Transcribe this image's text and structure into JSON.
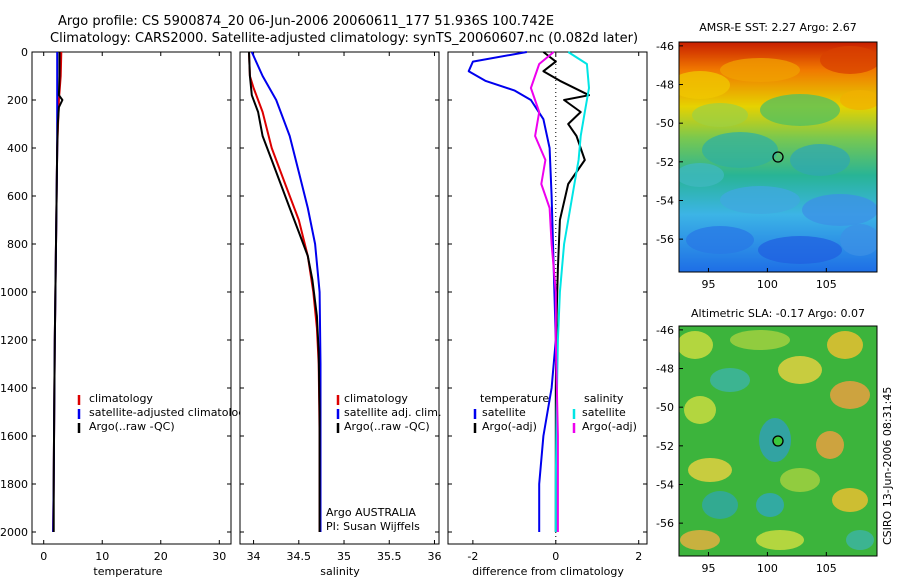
{
  "header": {
    "line1": "Argo profile: CS 5900874_20 06-Jun-2006 20060611_177 51.936S 100.742E",
    "line2": "Climatology: CARS2000. Satellite-adjusted climatology: synTS_20060607.nc (0.082d later)"
  },
  "panels": {
    "temperature": {
      "xlabel": "temperature",
      "xticks": [
        "0",
        "10",
        "20",
        "30"
      ],
      "legend": [
        "climatology",
        "satellite-adjusted climatology",
        "Argo(..raw -QC)"
      ]
    },
    "salinity": {
      "xlabel": "salinity",
      "xticks": [
        "34",
        "34.5",
        "35",
        "35.5",
        "36"
      ],
      "legend": [
        "climatology",
        "satellite adj. clim.",
        "Argo(..raw -QC)"
      ],
      "credit1": "Argo AUSTRALIA",
      "credit2": "PI: Susan Wijffels"
    },
    "difference": {
      "xlabel": "difference from climatology",
      "xticks": [
        "-2",
        "0",
        "2"
      ],
      "legend_temp_head": "temperature",
      "legend_sal_head": "salinity",
      "legend_temp": [
        "satellite",
        "Argo(-adj)"
      ],
      "legend_sal": [
        "satellite",
        "Argo(-adj)"
      ]
    }
  },
  "yticks": [
    "0",
    "200",
    "400",
    "600",
    "800",
    "1000",
    "1200",
    "1400",
    "1600",
    "1800",
    "2000"
  ],
  "maps": {
    "sst": {
      "title": "AMSR-E SST: 2.27 Argo: 2.67",
      "yticks": [
        "-46",
        "-48",
        "-50",
        "-52",
        "-54",
        "-56"
      ],
      "xticks": [
        "95",
        "100",
        "105"
      ]
    },
    "sla": {
      "title": "Altimetric SLA: -0.17 Argo: 0.07",
      "yticks": [
        "-46",
        "-48",
        "-50",
        "-52",
        "-54",
        "-56"
      ],
      "xticks": [
        "95",
        "100",
        "105"
      ]
    }
  },
  "timestamp": "CSIRO 13-Jun-2006 08:31:45",
  "colors": {
    "climatology": "#dd0000",
    "satellite": "#0000ee",
    "argo": "#000000",
    "sal_satellite": "#00e5e5",
    "sal_argo": "#ee00ee"
  },
  "chart_data": [
    {
      "type": "line",
      "xlabel": "temperature",
      "ylabel": "",
      "xlim": [
        -2,
        32
      ],
      "ylim": [
        2050,
        0
      ],
      "series": [
        {
          "name": "climatology",
          "x": [
            3.0,
            2.9,
            2.6,
            2.3,
            2.2,
            2.1,
            2.0,
            1.9,
            1.8,
            1.7,
            1.6
          ],
          "y": [
            0,
            100,
            200,
            400,
            600,
            800,
            1000,
            1200,
            1500,
            1800,
            2000
          ]
        },
        {
          "name": "satellite-adjusted climatology",
          "x": [
            2.3,
            2.3,
            2.3,
            2.3,
            2.2,
            2.1,
            2.0,
            1.9,
            1.8,
            1.7,
            1.6
          ],
          "y": [
            0,
            100,
            200,
            400,
            600,
            800,
            1000,
            1200,
            1500,
            1800,
            2000
          ]
        },
        {
          "name": "Argo(..raw -QC)",
          "x": [
            2.7,
            2.7,
            2.6,
            3.2,
            2.6,
            2.4,
            2.3,
            2.2,
            2.1,
            2.0,
            1.9,
            1.8,
            1.7,
            1.7
          ],
          "y": [
            0,
            100,
            180,
            200,
            230,
            300,
            400,
            600,
            800,
            1000,
            1200,
            1500,
            1800,
            2000
          ]
        }
      ]
    },
    {
      "type": "line",
      "xlabel": "salinity",
      "xlim": [
        33.85,
        36.05
      ],
      "ylim": [
        2050,
        0
      ],
      "series": [
        {
          "name": "climatology",
          "x": [
            33.95,
            33.96,
            34.0,
            34.1,
            34.2,
            34.35,
            34.5,
            34.6,
            34.66,
            34.7,
            34.72,
            34.73,
            34.73
          ],
          "y": [
            0,
            100,
            150,
            250,
            400,
            550,
            700,
            850,
            1000,
            1150,
            1300,
            1600,
            2000
          ]
        },
        {
          "name": "satellite adj. clim.",
          "x": [
            33.98,
            34.1,
            34.25,
            34.4,
            34.5,
            34.6,
            34.68,
            34.73,
            34.74,
            34.74
          ],
          "y": [
            0,
            100,
            200,
            350,
            500,
            650,
            800,
            1000,
            1300,
            2000
          ]
        },
        {
          "name": "Argo(..raw -QC)",
          "x": [
            33.95,
            33.96,
            33.98,
            34.05,
            34.1,
            34.2,
            34.3,
            34.4,
            34.5,
            34.6,
            34.65,
            34.7,
            34.72,
            34.73,
            34.73
          ],
          "y": [
            0,
            100,
            180,
            250,
            350,
            450,
            550,
            650,
            750,
            850,
            950,
            1100,
            1250,
            1500,
            2000
          ]
        }
      ]
    },
    {
      "type": "line",
      "xlabel": "difference from climatology",
      "xlim": [
        -2.6,
        2.2
      ],
      "ylim": [
        2050,
        0
      ],
      "series": [
        {
          "name": "temperature satellite",
          "x": [
            -0.7,
            -2.0,
            -2.1,
            -1.7,
            -1.0,
            -0.6,
            -0.3,
            -0.15,
            -0.1,
            -0.05,
            0.0,
            -0.1,
            -0.3,
            -0.4,
            -0.4
          ],
          "y": [
            0,
            40,
            80,
            120,
            160,
            200,
            280,
            400,
            600,
            900,
            1200,
            1400,
            1600,
            1800,
            2000
          ]
        },
        {
          "name": "temperature Argo(-adj)",
          "x": [
            -0.3,
            0.0,
            -0.3,
            0.1,
            0.8,
            0.2,
            0.6,
            0.3,
            0.5,
            0.7,
            0.3,
            0.1,
            0.05,
            0.02,
            0.0,
            0.0,
            0.0
          ],
          "y": [
            0,
            40,
            80,
            120,
            180,
            200,
            250,
            300,
            350,
            450,
            550,
            700,
            900,
            1100,
            1400,
            1800,
            2000
          ]
        },
        {
          "name": "salinity satellite",
          "x": [
            0.3,
            0.75,
            0.8,
            0.7,
            0.6,
            0.55,
            0.45,
            0.35,
            0.2,
            0.1,
            0.05,
            0.02,
            0.0,
            0.0
          ],
          "y": [
            0,
            50,
            150,
            250,
            350,
            450,
            550,
            650,
            800,
            1000,
            1200,
            1500,
            1800,
            2000
          ]
        },
        {
          "name": "salinity Argo(-adj)",
          "x": [
            -0.05,
            -0.4,
            -0.6,
            -0.4,
            -0.5,
            -0.25,
            -0.35,
            -0.15,
            -0.1,
            0.0,
            0.0,
            0.05,
            0.05
          ],
          "y": [
            0,
            50,
            150,
            250,
            350,
            450,
            550,
            650,
            800,
            1000,
            1200,
            1600,
            2000
          ]
        }
      ]
    }
  ]
}
